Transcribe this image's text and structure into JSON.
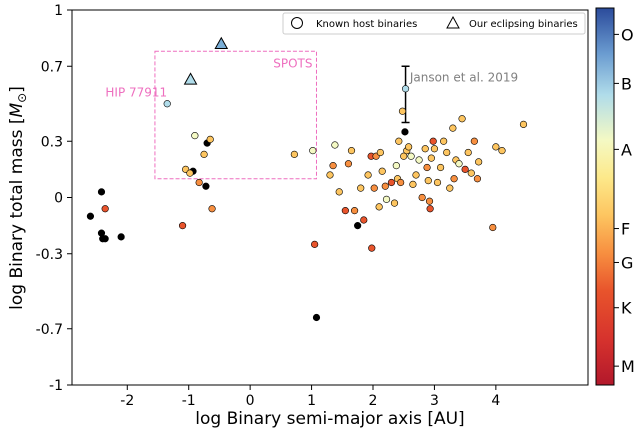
{
  "chart_data": {
    "type": "scatter",
    "xlabel": "log Binary semi-major axis [AU]",
    "ylabel_prefix": "log Binary total mass [",
    "ylabel_unit_symbol": "M",
    "ylabel_unit_subscript": "⊙",
    "ylabel_suffix": "]",
    "xlim": [
      -2.9,
      5.5
    ],
    "ylim": [
      -1,
      1
    ],
    "x_ticks": [
      -2,
      -1,
      0,
      1,
      2,
      3,
      4
    ],
    "y_ticks": [
      1,
      0.7,
      0.3,
      0,
      -0.3,
      -0.7,
      -1
    ],
    "y_tick_labels": [
      "1",
      "0.7",
      "0.3",
      "0",
      "-0.3",
      "-0.7",
      "-1"
    ],
    "grid": false,
    "legend": {
      "position": "top-right",
      "entries": [
        {
          "marker": "circle",
          "label": "Known host binaries"
        },
        {
          "marker": "triangle",
          "label": "Our eclipsing binaries"
        }
      ]
    },
    "colors": {
      "M": "#b2182b",
      "K": "#e8542c",
      "G": "#f78f40",
      "F": "#fdc560",
      "A": "#f4f9c4",
      "B": "#b0dcea",
      "O": "#2b4b9b",
      "black": "#000000"
    },
    "colorbar": {
      "labels": [
        {
          "label": "O",
          "value": 0.93
        },
        {
          "label": "B",
          "value": 0.8
        },
        {
          "label": "A",
          "value": 0.625
        },
        {
          "label": "F",
          "value": 0.415
        },
        {
          "label": "G",
          "value": 0.325
        },
        {
          "label": "K",
          "value": 0.205
        },
        {
          "label": "M",
          "value": 0.05
        }
      ]
    },
    "region": {
      "label": "SPOTS",
      "x_range": [
        -1.55,
        1.08
      ],
      "y_range": [
        0.1,
        0.78
      ]
    },
    "annotations": [
      {
        "text": "HIP 77911",
        "x": -1.35,
        "y": 0.56
      },
      {
        "text": "Janson et al. 2019",
        "x": 2.6,
        "y": 0.64
      }
    ],
    "error_bars": [
      {
        "x": 2.53,
        "y": 0.58,
        "low": 0.4,
        "high": 0.7
      }
    ],
    "triangles": [
      {
        "x": -0.47,
        "y": 0.82,
        "color": "#7aaed6"
      },
      {
        "x": -0.97,
        "y": 0.63,
        "color": "#b0dcea"
      }
    ],
    "points": [
      {
        "x": -1.35,
        "y": 0.5,
        "c": "#b0dcea"
      },
      {
        "x": 2.53,
        "y": 0.58,
        "c": "#b0dcea"
      },
      {
        "x": -2.6,
        "y": -0.1,
        "c": "#000000"
      },
      {
        "x": -2.42,
        "y": 0.03,
        "c": "#000000"
      },
      {
        "x": -2.42,
        "y": -0.19,
        "c": "#000000"
      },
      {
        "x": -2.4,
        "y": -0.22,
        "c": "#000000"
      },
      {
        "x": -2.36,
        "y": -0.22,
        "c": "#000000"
      },
      {
        "x": -2.1,
        "y": -0.21,
        "c": "#000000"
      },
      {
        "x": -2.36,
        "y": -0.06,
        "c": "#e8542c"
      },
      {
        "x": -1.1,
        "y": -0.15,
        "c": "#e8542c"
      },
      {
        "x": -0.93,
        "y": 0.14,
        "c": "#000000"
      },
      {
        "x": -0.72,
        "y": 0.06,
        "c": "#000000"
      },
      {
        "x": -0.7,
        "y": 0.29,
        "c": "#000000"
      },
      {
        "x": -0.9,
        "y": 0.33,
        "c": "#f4f9c4"
      },
      {
        "x": -1.05,
        "y": 0.15,
        "c": "#fdc560"
      },
      {
        "x": -0.98,
        "y": 0.13,
        "c": "#fdc560"
      },
      {
        "x": -0.75,
        "y": 0.23,
        "c": "#fdc560"
      },
      {
        "x": -0.65,
        "y": 0.31,
        "c": "#fdc560"
      },
      {
        "x": -0.83,
        "y": 0.08,
        "c": "#f78f40"
      },
      {
        "x": -0.62,
        "y": -0.06,
        "c": "#f78f40"
      },
      {
        "x": 0.72,
        "y": 0.23,
        "c": "#fdc560"
      },
      {
        "x": 1.02,
        "y": 0.25,
        "c": "#f4f9c4"
      },
      {
        "x": 1.05,
        "y": -0.25,
        "c": "#e8542c"
      },
      {
        "x": 1.08,
        "y": -0.64,
        "c": "#000000"
      },
      {
        "x": 1.3,
        "y": 0.12,
        "c": "#fdc560"
      },
      {
        "x": 1.35,
        "y": 0.17,
        "c": "#f78f40"
      },
      {
        "x": 1.38,
        "y": 0.28,
        "c": "#f4f9c4"
      },
      {
        "x": 1.45,
        "y": 0.03,
        "c": "#fdc560"
      },
      {
        "x": 1.55,
        "y": -0.07,
        "c": "#e8542c"
      },
      {
        "x": 1.6,
        "y": 0.18,
        "c": "#f78f40"
      },
      {
        "x": 1.65,
        "y": 0.25,
        "c": "#fdc560"
      },
      {
        "x": 1.7,
        "y": -0.07,
        "c": "#f78f40"
      },
      {
        "x": 1.75,
        "y": -0.15,
        "c": "#000000"
      },
      {
        "x": 1.8,
        "y": 0.05,
        "c": "#fdc560"
      },
      {
        "x": 1.85,
        "y": -0.12,
        "c": "#e8542c"
      },
      {
        "x": 1.92,
        "y": 0.12,
        "c": "#fdc560"
      },
      {
        "x": 1.97,
        "y": 0.22,
        "c": "#e8542c"
      },
      {
        "x": 1.98,
        "y": -0.27,
        "c": "#e8542c"
      },
      {
        "x": 2.02,
        "y": 0.05,
        "c": "#f78f40"
      },
      {
        "x": 2.05,
        "y": 0.22,
        "c": "#f78f40"
      },
      {
        "x": 2.1,
        "y": -0.05,
        "c": "#fdc560"
      },
      {
        "x": 2.12,
        "y": 0.24,
        "c": "#fdc560"
      },
      {
        "x": 2.15,
        "y": 0.14,
        "c": "#fdc560"
      },
      {
        "x": 2.2,
        "y": 0.06,
        "c": "#f78f40"
      },
      {
        "x": 2.22,
        "y": -0.01,
        "c": "#f4f9c4"
      },
      {
        "x": 2.3,
        "y": 0.08,
        "c": "#e8542c"
      },
      {
        "x": 2.35,
        "y": -0.03,
        "c": "#fdc560"
      },
      {
        "x": 2.38,
        "y": 0.17,
        "c": "#f4f9c4"
      },
      {
        "x": 2.4,
        "y": 0.1,
        "c": "#fdc560"
      },
      {
        "x": 2.42,
        "y": 0.3,
        "c": "#fdc560"
      },
      {
        "x": 2.45,
        "y": 0.08,
        "c": "#f78f40"
      },
      {
        "x": 2.48,
        "y": 0.46,
        "c": "#fdc560"
      },
      {
        "x": 2.5,
        "y": 0.22,
        "c": "#fdc560"
      },
      {
        "x": 2.52,
        "y": 0.35,
        "c": "#000000"
      },
      {
        "x": 2.55,
        "y": 0.25,
        "c": "#fdc560"
      },
      {
        "x": 2.58,
        "y": 0.27,
        "c": "#fdc560"
      },
      {
        "x": 2.62,
        "y": 0.22,
        "c": "#f4f9c4"
      },
      {
        "x": 2.65,
        "y": 0.07,
        "c": "#fdc560"
      },
      {
        "x": 2.7,
        "y": 0.12,
        "c": "#fdc560"
      },
      {
        "x": 2.75,
        "y": 0.2,
        "c": "#f4f9c4"
      },
      {
        "x": 2.8,
        "y": 0.0,
        "c": "#f78f40"
      },
      {
        "x": 2.85,
        "y": 0.26,
        "c": "#fdc560"
      },
      {
        "x": 2.88,
        "y": 0.16,
        "c": "#f78f40"
      },
      {
        "x": 2.9,
        "y": 0.09,
        "c": "#fdc560"
      },
      {
        "x": 2.92,
        "y": -0.02,
        "c": "#f78f40"
      },
      {
        "x": 2.93,
        "y": -0.06,
        "c": "#e8542c"
      },
      {
        "x": 2.95,
        "y": 0.21,
        "c": "#fdc560"
      },
      {
        "x": 2.98,
        "y": 0.3,
        "c": "#e8542c"
      },
      {
        "x": 3.0,
        "y": 0.26,
        "c": "#fdc560"
      },
      {
        "x": 3.05,
        "y": 0.08,
        "c": "#fdc560"
      },
      {
        "x": 3.1,
        "y": 0.16,
        "c": "#fdc560"
      },
      {
        "x": 3.15,
        "y": 0.3,
        "c": "#fdc560"
      },
      {
        "x": 3.2,
        "y": 0.24,
        "c": "#fdc560"
      },
      {
        "x": 3.25,
        "y": 0.05,
        "c": "#fdc560"
      },
      {
        "x": 3.3,
        "y": 0.37,
        "c": "#fdc560"
      },
      {
        "x": 3.32,
        "y": 0.1,
        "c": "#f78f40"
      },
      {
        "x": 3.35,
        "y": 0.2,
        "c": "#fdc560"
      },
      {
        "x": 3.4,
        "y": 0.18,
        "c": "#f4f9c4"
      },
      {
        "x": 3.45,
        "y": 0.42,
        "c": "#fdc560"
      },
      {
        "x": 3.5,
        "y": 0.15,
        "c": "#e8542c"
      },
      {
        "x": 3.55,
        "y": 0.24,
        "c": "#fdc560"
      },
      {
        "x": 3.6,
        "y": 0.13,
        "c": "#fdc560"
      },
      {
        "x": 3.65,
        "y": 0.3,
        "c": "#f78f40"
      },
      {
        "x": 3.7,
        "y": 0.1,
        "c": "#f78f40"
      },
      {
        "x": 3.72,
        "y": 0.19,
        "c": "#fdc560"
      },
      {
        "x": 3.95,
        "y": -0.16,
        "c": "#f78f40"
      },
      {
        "x": 4.0,
        "y": 0.27,
        "c": "#fdc560"
      },
      {
        "x": 4.1,
        "y": 0.25,
        "c": "#fdc560"
      },
      {
        "x": 4.45,
        "y": 0.39,
        "c": "#fdc560"
      }
    ]
  }
}
